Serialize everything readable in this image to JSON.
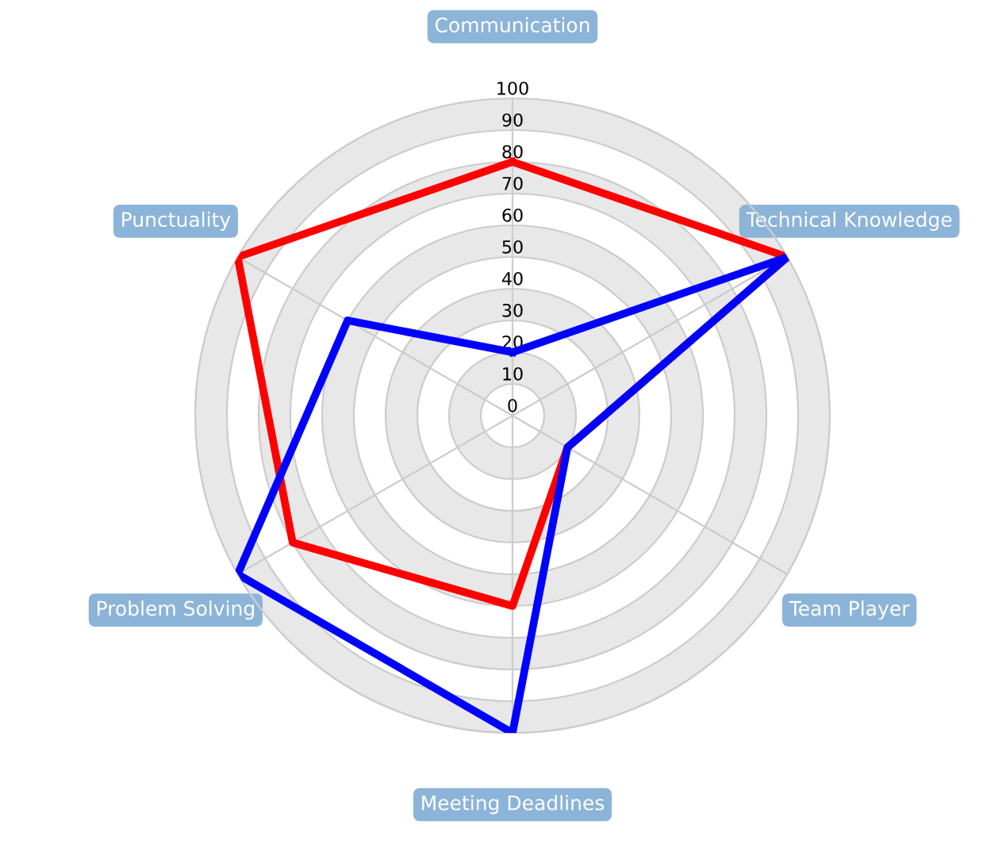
{
  "chart_data": {
    "type": "radar",
    "categories": [
      "Communication",
      "Technical Knowledge",
      "Team Player",
      "Meeting Deadlines",
      "Problem Solving",
      "Punctuality"
    ],
    "series": [
      {
        "color": "#ff0000",
        "values": [
          80,
          100,
          20,
          60,
          80,
          100
        ]
      },
      {
        "color": "#0000ff",
        "values": [
          20,
          100,
          20,
          100,
          100,
          60
        ]
      }
    ],
    "ylim": [
      0,
      100
    ],
    "yticks": [
      0,
      10,
      20,
      30,
      40,
      50,
      60,
      70,
      80,
      90,
      100
    ],
    "grid": true,
    "marker": "none",
    "line_style": "solid"
  }
}
